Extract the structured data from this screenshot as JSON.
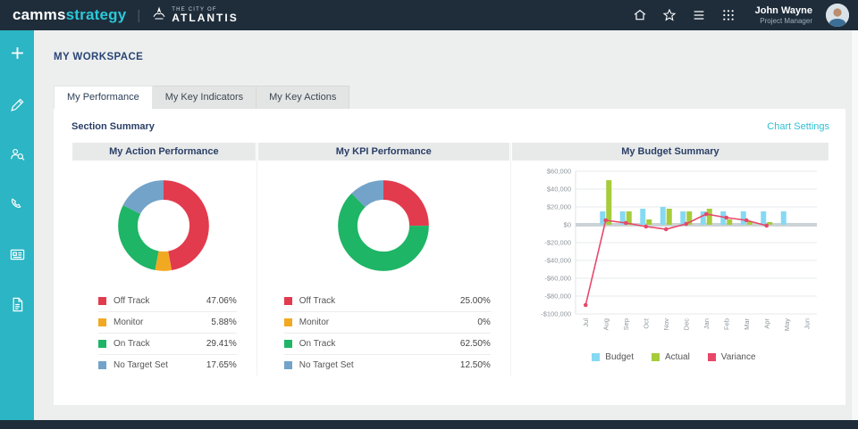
{
  "topbar": {
    "brand_camms": "camms",
    "brand_strategy": "strategy",
    "client_small": "THE CITY OF",
    "client_name": "ATLANTIS",
    "user_name": "John Wayne",
    "user_role": "Project Manager"
  },
  "page": {
    "title": "MY WORKSPACE",
    "section_title": "Section Summary",
    "chart_settings_label": "Chart Settings"
  },
  "tabs": [
    {
      "label": "My Performance",
      "active": true
    },
    {
      "label": "My Key Indicators",
      "active": false
    },
    {
      "label": "My Key Actions",
      "active": false
    }
  ],
  "colors": {
    "accent_cyan": "#2cb5c4",
    "topbar_navy": "#1f2d3b",
    "off_track_red": "#e23b4e",
    "monitor_amber": "#f2a922",
    "on_track_green": "#1eb566",
    "no_target_blue": "#73a3c8",
    "budget_blue": "#86d9f2",
    "actual_green": "#a6cc3a",
    "variance_pink": "#e8476a"
  },
  "chart_data": [
    {
      "type": "pie",
      "title": "My Action Performance",
      "segments": [
        {
          "label": "Off Track",
          "value": 47.06,
          "display": "47.06%",
          "color": "#e23b4e"
        },
        {
          "label": "Monitor",
          "value": 5.88,
          "display": "5.88%",
          "color": "#f2a922"
        },
        {
          "label": "On Track",
          "value": 29.41,
          "display": "29.41%",
          "color": "#1eb566"
        },
        {
          "label": "No Target Set",
          "value": 17.65,
          "display": "17.65%",
          "color": "#73a3c8"
        }
      ]
    },
    {
      "type": "pie",
      "title": "My KPI Performance",
      "segments": [
        {
          "label": "Off Track",
          "value": 25.0,
          "display": "25.00%",
          "color": "#e23b4e"
        },
        {
          "label": "Monitor",
          "value": 0,
          "display": "0%",
          "color": "#f2a922"
        },
        {
          "label": "On Track",
          "value": 62.5,
          "display": "62.50%",
          "color": "#1eb566"
        },
        {
          "label": "No Target Set",
          "value": 12.5,
          "display": "12.50%",
          "color": "#73a3c8"
        }
      ]
    },
    {
      "type": "bar",
      "title": "My Budget Summary",
      "categories": [
        "Jul",
        "Aug",
        "Sep",
        "Oct",
        "Nov",
        "Dec",
        "Jan",
        "Feb",
        "Mar",
        "Apr",
        "May",
        "Jun"
      ],
      "ylim": [
        -100000,
        60000
      ],
      "yticks": [
        "$60,000",
        "$40,000",
        "$20,000",
        "$0",
        "-$20,000",
        "-$40,000",
        "-$60,000",
        "-$80,000",
        "-$100,000"
      ],
      "series": [
        {
          "name": "Budget",
          "kind": "bar",
          "color": "#86d9f2",
          "values": [
            0,
            15000,
            15000,
            18000,
            20000,
            15000,
            15000,
            15000,
            15000,
            15000,
            15000,
            0
          ]
        },
        {
          "name": "Actual",
          "kind": "bar",
          "color": "#a6cc3a",
          "values": [
            0,
            50000,
            15000,
            6000,
            18000,
            15000,
            18000,
            6000,
            4000,
            3000,
            0,
            0
          ]
        },
        {
          "name": "Variance",
          "kind": "line",
          "color": "#e8476a",
          "values": [
            -90000,
            5000,
            2000,
            -2000,
            -5000,
            1000,
            12000,
            8000,
            5000,
            -1000,
            null,
            null
          ]
        }
      ],
      "legend": [
        "Budget",
        "Actual",
        "Variance"
      ]
    }
  ]
}
